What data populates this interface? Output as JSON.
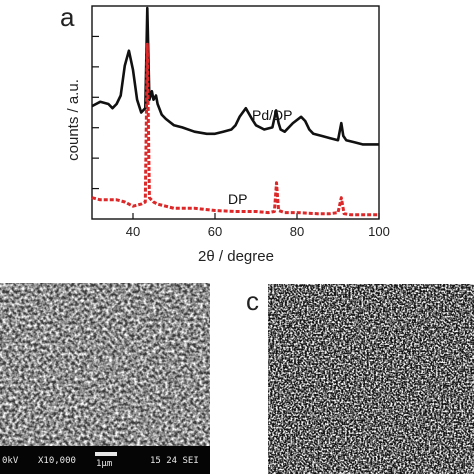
{
  "panels": {
    "a": {
      "letter": "a"
    },
    "b": {
      "databar": {
        "kv": "0kV",
        "mag": "X10,000",
        "scale": "1μm",
        "wd": "15 24 SEI"
      }
    },
    "c": {
      "letter": "c"
    }
  },
  "chart_data": {
    "type": "line",
    "xlabel": "2θ / degree",
    "ylabel": "counts / a.u.",
    "xlim": [
      30,
      100
    ],
    "ylim": [
      0,
      100
    ],
    "x_ticks": [
      40,
      60,
      80,
      100
    ],
    "y_ticks": [],
    "grid": false,
    "series": [
      {
        "name": "Pd/DP",
        "color": "#111111",
        "line": "solid",
        "x": [
          30,
          32,
          34,
          35,
          36,
          37,
          38,
          39,
          40,
          41,
          42,
          43,
          43.5,
          44,
          44.6,
          45,
          45.6,
          46,
          47,
          48,
          50,
          52,
          55,
          58,
          60,
          62,
          64,
          65,
          66,
          67.5,
          69,
          70,
          72,
          74,
          74.9,
          75.5,
          76,
          77,
          79,
          81,
          82,
          83,
          84,
          86,
          88,
          90,
          90.8,
          91.3,
          92,
          94,
          96,
          98,
          100
        ],
        "y": [
          53,
          55,
          54,
          52,
          54,
          58,
          72,
          79,
          70,
          56,
          50,
          52,
          99,
          56,
          60,
          56,
          58,
          54,
          49,
          47,
          44,
          43,
          41,
          40,
          40,
          41,
          42,
          44,
          48,
          52,
          47,
          44,
          42,
          43,
          51,
          45,
          42,
          41,
          45,
          48,
          46,
          42,
          40,
          39,
          38,
          37,
          45,
          39,
          37,
          36,
          35,
          35,
          35
        ]
      },
      {
        "name": "DP",
        "color": "#dc2828",
        "line": "dashed",
        "x": [
          30,
          32,
          34,
          36,
          38,
          40,
          42,
          43,
          43.5,
          44,
          45,
          46,
          48,
          50,
          55,
          60,
          65,
          70,
          73,
          74.5,
          75,
          75.5,
          77,
          80,
          85,
          88,
          90,
          90.8,
          91.5,
          93,
          96,
          100
        ],
        "y": [
          10,
          9,
          9,
          9,
          8,
          6,
          7,
          8,
          82,
          10,
          8,
          7,
          6,
          5,
          5,
          4,
          3.5,
          3.5,
          3,
          3.5,
          17,
          4,
          3,
          3,
          2.5,
          2.5,
          3,
          10,
          2.5,
          2,
          2,
          2
        ]
      }
    ]
  }
}
